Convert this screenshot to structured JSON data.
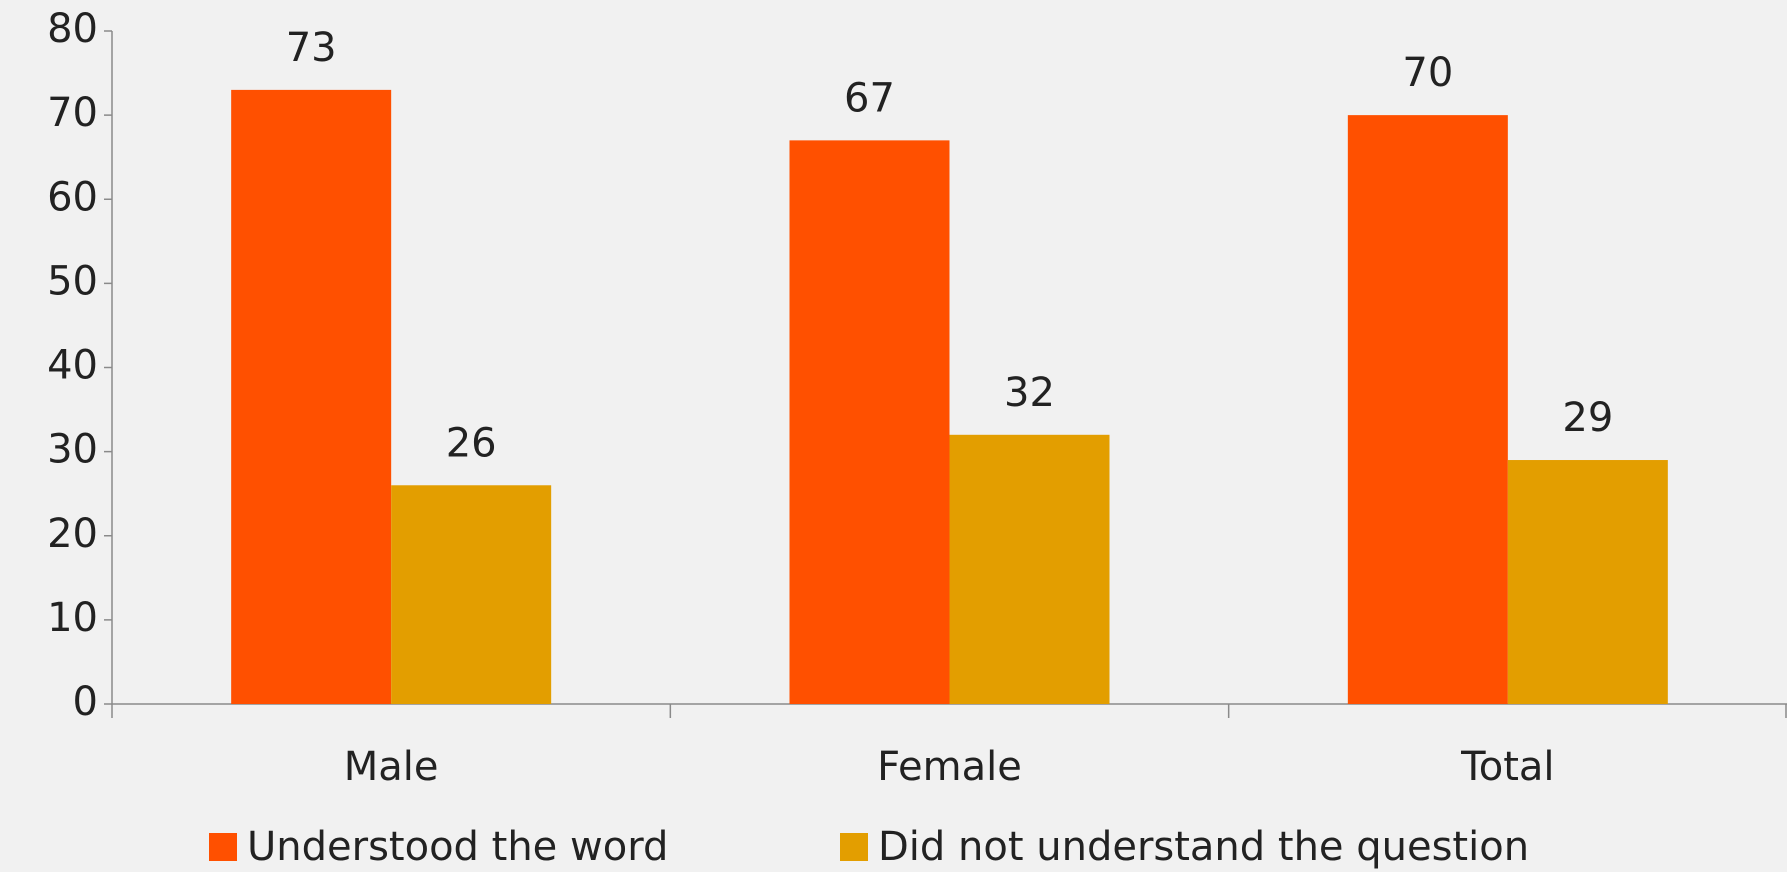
{
  "chart_data": {
    "type": "bar",
    "categories": [
      "Male",
      "Female",
      "Total"
    ],
    "series": [
      {
        "name": "Understood the word",
        "color": "#ff5000",
        "values": [
          73,
          67,
          70
        ]
      },
      {
        "name": "Did not understand the question",
        "color": "#e39e00",
        "values": [
          26,
          32,
          29
        ]
      }
    ],
    "ylim": [
      0,
      80
    ],
    "yticks": [
      0,
      10,
      20,
      30,
      40,
      50,
      60,
      70,
      80
    ],
    "grid": false,
    "legend": "bottom"
  }
}
